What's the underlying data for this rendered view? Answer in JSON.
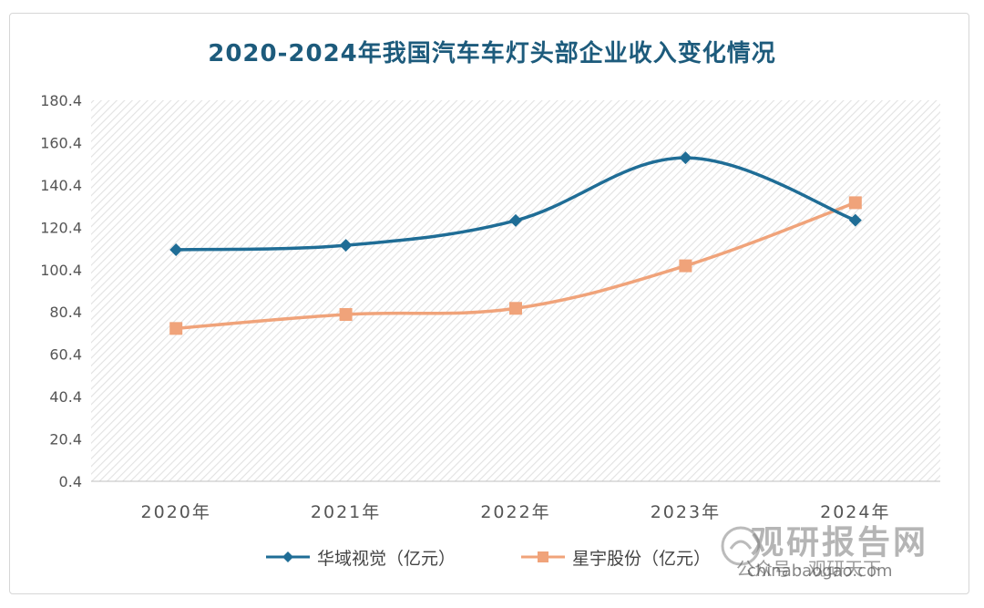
{
  "chart_data": {
    "type": "line",
    "title": "2020-2024年我国汽车车灯头部企业收入变化情况",
    "categories": [
      "2020年",
      "2021年",
      "2022年",
      "2023年",
      "2024年"
    ],
    "yticks": [
      "0.4",
      "20.4",
      "40.4",
      "60.4",
      "80.4",
      "100.4",
      "120.4",
      "140.4",
      "160.4",
      "180.4"
    ],
    "ylim": [
      0.4,
      180.4
    ],
    "grid": false,
    "legend_position": "bottom",
    "series": [
      {
        "name": "华域视觉（亿元）",
        "color": "#1f6d96",
        "marker": "diamond",
        "values": [
          109.8,
          111.9,
          123.6,
          153.2,
          123.7
        ]
      },
      {
        "name": "星宇股份（亿元）",
        "color": "#f0a37a",
        "marker": "square",
        "values": [
          72.6,
          79.2,
          82.1,
          102.2,
          132.0
        ]
      }
    ]
  },
  "watermark": {
    "brand": "观研报告网",
    "sub": "公众号 · 观研天下",
    "url": "chinabaogao.com"
  }
}
